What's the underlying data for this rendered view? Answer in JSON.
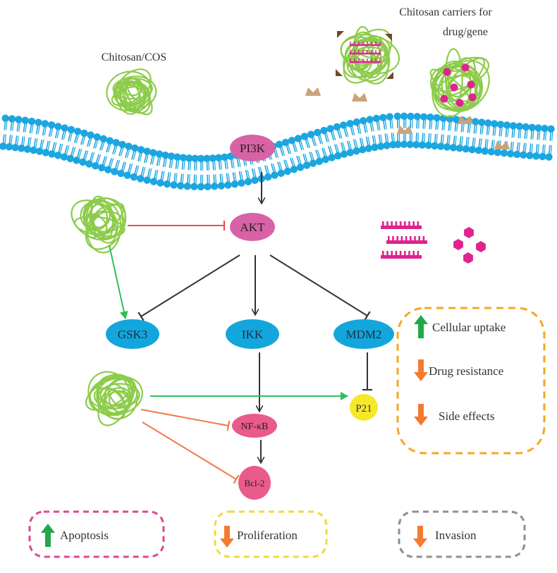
{
  "labels": {
    "chitosan_cos": "Chitosan/COS",
    "carriers_line1": "Chitosan carriers for",
    "carriers_line2": "drug/gene"
  },
  "nodes": {
    "pi3k": "PI3K",
    "akt": "AKT",
    "gsk3": "GSK3",
    "ikk": "IKK",
    "mdm2": "MDM2",
    "p21": "P21",
    "nfkb": "NF-κB",
    "bcl2": "Bcl-2"
  },
  "benefits": {
    "items": [
      {
        "label": "Cellular uptake",
        "direction": "up"
      },
      {
        "label": "Drug resistance",
        "direction": "down"
      },
      {
        "label": "Side effects",
        "direction": "down"
      }
    ]
  },
  "outcomes": [
    {
      "label": "Apoptosis",
      "direction": "up"
    },
    {
      "label": "Proliferation",
      "direction": "down"
    },
    {
      "label": "Invasion",
      "direction": "down"
    }
  ],
  "colors": {
    "membrane": "#1ba6e0",
    "pink_node": "#d862a6",
    "blue_node": "#13a6dc",
    "red_node": "#ea5a8c",
    "yellow_node": "#f6e72a",
    "chitosan": "#8ccc4a",
    "inhibit_red": "#e8504e",
    "activate_green": "#2fbf59",
    "inhibit_orange": "#f07a4a",
    "arrow_up": "#22a84a",
    "arrow_down": "#f47a30",
    "box_orange": "#f5a623",
    "box_pink": "#e2458e",
    "box_yellow": "#f3d838",
    "box_grey": "#8f8f8f",
    "receptor": "#c9a47a"
  }
}
